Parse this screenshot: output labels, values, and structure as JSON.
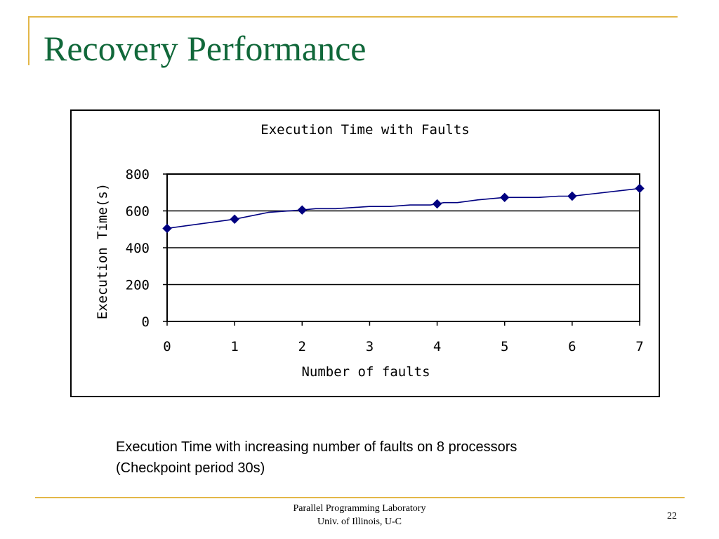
{
  "slide": {
    "title": "Recovery Performance",
    "caption_line1": "Execution Time with increasing number of faults on 8 processors",
    "caption_line2": "(Checkpoint period 30s)",
    "footer_line1": "Parallel Programming Laboratory",
    "footer_line2": "Univ. of Illinois, U-C",
    "page_number": "22",
    "colors": {
      "title": "#11683a",
      "accent_rule": "#e3b748",
      "series": "#000080"
    }
  },
  "chart_data": {
    "type": "line",
    "title": "Execution Time with Faults",
    "xlabel": "Number of faults",
    "ylabel": "Execution Time(s)",
    "x": [
      0,
      1,
      2,
      3,
      4,
      5,
      6,
      7
    ],
    "x_tick_labels": [
      "0",
      "1",
      "2",
      "3",
      "4",
      "5",
      "6",
      "7"
    ],
    "y_ticks": [
      0,
      200,
      400,
      600,
      800
    ],
    "y_tick_labels": [
      "0",
      "200",
      "400",
      "600",
      "800"
    ],
    "ylim": [
      0,
      800
    ],
    "xlim": [
      0,
      7
    ],
    "grid": "horizontal",
    "legend": "none",
    "series": [
      {
        "marker": "diamond",
        "markers_x": [
          0,
          1,
          2,
          4,
          5,
          6,
          7
        ],
        "markers_y": [
          505,
          555,
          605,
          638,
          673,
          680,
          722
        ],
        "line_x": [
          0,
          1,
          1.5,
          2,
          2.2,
          2.5,
          3,
          3.3,
          3.6,
          3.9,
          4,
          4.1,
          4.3,
          4.6,
          5,
          5.5,
          5.8,
          6,
          7
        ],
        "line_y": [
          505,
          555,
          592,
          605,
          612,
          612,
          624,
          624,
          632,
          632,
          638,
          645,
          645,
          660,
          673,
          673,
          680,
          680,
          722
        ]
      }
    ]
  }
}
